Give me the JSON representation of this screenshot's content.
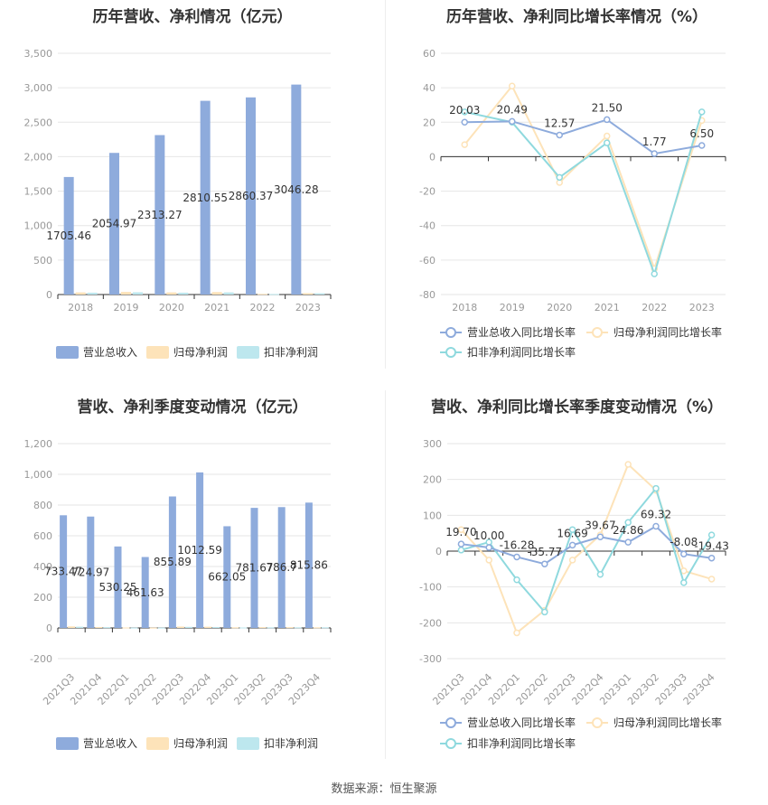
{
  "source": "数据来源：恒生聚源",
  "colors": {
    "revenue": "#8eabdc",
    "net_profit": "#fde3b9",
    "deducted_profit": "#bde7ee",
    "revenue_line": "#8eabdc",
    "net_line": "#fde3b9",
    "deducted_line": "#8fd9de",
    "axis": "#333333",
    "grid": "#e6e6e6",
    "tick_text": "#999999",
    "label_text": "#333333"
  },
  "chart_data": [
    {
      "id": "annual-amount",
      "type": "bar",
      "title": "历年营收、净利情况（亿元）",
      "categories": [
        "2018",
        "2019",
        "2020",
        "2021",
        "2022",
        "2023"
      ],
      "ylim": [
        0,
        3500
      ],
      "yticks": [
        0,
        500,
        1000,
        1500,
        2000,
        2500,
        3000,
        3500
      ],
      "ytick_labels": [
        "0",
        "500",
        "1,000",
        "1,500",
        "2,000",
        "2,500",
        "3,000",
        "3,500"
      ],
      "grid": true,
      "legend_position": "bottom",
      "series": [
        {
          "name": "营业总收入",
          "values": [
            1705.46,
            2054.97,
            2313.27,
            2810.55,
            2860.37,
            3046.28
          ],
          "labels": [
            "1705.46",
            "2054.97",
            "2313.27",
            "2810.55",
            "2860.37",
            "3046.28"
          ]
        },
        {
          "name": "归母净利润",
          "values": [
            31,
            38,
            31,
            36,
            10,
            20
          ]
        },
        {
          "name": "扣非净利润",
          "values": [
            27,
            33,
            27,
            31,
            8,
            18
          ]
        }
      ]
    },
    {
      "id": "annual-growth",
      "type": "line",
      "title": "历年营收、净利同比增长率情况（%）",
      "categories": [
        "2018",
        "2019",
        "2020",
        "2021",
        "2022",
        "2023"
      ],
      "ylim": [
        -80,
        60
      ],
      "yticks": [
        -80,
        -60,
        -40,
        -20,
        0,
        20,
        40,
        60
      ],
      "ytick_labels": [
        "-80",
        "-60",
        "-40",
        "-20",
        "0",
        "20",
        "40",
        "60"
      ],
      "grid": true,
      "legend_position": "bottom",
      "series": [
        {
          "name": "营业总收入同比增长率",
          "values": [
            20.03,
            20.49,
            12.57,
            21.5,
            1.77,
            6.5
          ],
          "labels": [
            "20.03",
            "20.49",
            "12.57",
            "21.50",
            "1.77",
            "6.50"
          ]
        },
        {
          "name": "归母净利润同比增长率",
          "values": [
            7,
            41,
            -15,
            12,
            -65,
            21
          ]
        },
        {
          "name": "扣非净利润同比增长率",
          "values": [
            26,
            20,
            -12,
            8,
            -68,
            26
          ]
        }
      ]
    },
    {
      "id": "quarterly-amount",
      "type": "bar",
      "title": "营收、净利季度变动情况（亿元）",
      "categories": [
        "2021Q3",
        "2021Q4",
        "2022Q1",
        "2022Q2",
        "2022Q3",
        "2022Q4",
        "2023Q1",
        "2023Q2",
        "2023Q3",
        "2023Q4"
      ],
      "ylim": [
        -200,
        1200
      ],
      "yticks": [
        -200,
        0,
        200,
        400,
        600,
        800,
        1000,
        1200
      ],
      "ytick_labels": [
        "-200",
        "0",
        "200",
        "400",
        "600",
        "800",
        "1,000",
        "1,200"
      ],
      "grid": true,
      "legend_position": "bottom",
      "series": [
        {
          "name": "营业总收入",
          "values": [
            733.47,
            724.97,
            530.25,
            461.63,
            855.89,
            1012.59,
            662.05,
            781.67,
            786.7,
            815.86
          ],
          "labels": [
            "733.47",
            "724.97",
            "530.25",
            "461.63",
            "855.89",
            "1012.59",
            "662.05",
            "781.67",
            "786.7",
            "815.86"
          ]
        },
        {
          "name": "归母净利润",
          "values": [
            10,
            6,
            3,
            2,
            9,
            8,
            4,
            5,
            5,
            4
          ]
        },
        {
          "name": "扣非净利润",
          "values": [
            8,
            5,
            2,
            2,
            7,
            6,
            3,
            4,
            4,
            4
          ]
        }
      ]
    },
    {
      "id": "quarterly-growth",
      "type": "line",
      "title": "营收、净利同比增长率季度变动情况（%）",
      "categories": [
        "2021Q3",
        "2021Q4",
        "2022Q1",
        "2022Q2",
        "2022Q3",
        "2022Q4",
        "2023Q1",
        "2023Q2",
        "2023Q3",
        "2023Q4"
      ],
      "ylim": [
        -300,
        300
      ],
      "yticks": [
        -300,
        -200,
        -100,
        0,
        100,
        200,
        300
      ],
      "ytick_labels": [
        "-300",
        "-200",
        "-100",
        "0",
        "100",
        "200",
        "300"
      ],
      "grid": true,
      "legend_position": "bottom",
      "series": [
        {
          "name": "营业总收入同比增长率",
          "values": [
            19.7,
            10.0,
            -16.28,
            -35.77,
            16.69,
            39.67,
            24.86,
            69.32,
            -8.08,
            -19.43
          ],
          "labels": [
            "19.70",
            "10.00",
            "-16.28",
            "-35.77",
            "16.69",
            "39.67",
            "24.86",
            "69.32",
            "-8.08",
            "-19.43"
          ]
        },
        {
          "name": "归母净利润同比增长率",
          "values": [
            60,
            -25,
            -228,
            -165,
            -25,
            45,
            242,
            170,
            -55,
            -78
          ]
        },
        {
          "name": "扣非净利润同比增长率",
          "values": [
            3,
            25,
            -80,
            -170,
            60,
            -65,
            80,
            175,
            -88,
            45
          ]
        }
      ]
    }
  ]
}
